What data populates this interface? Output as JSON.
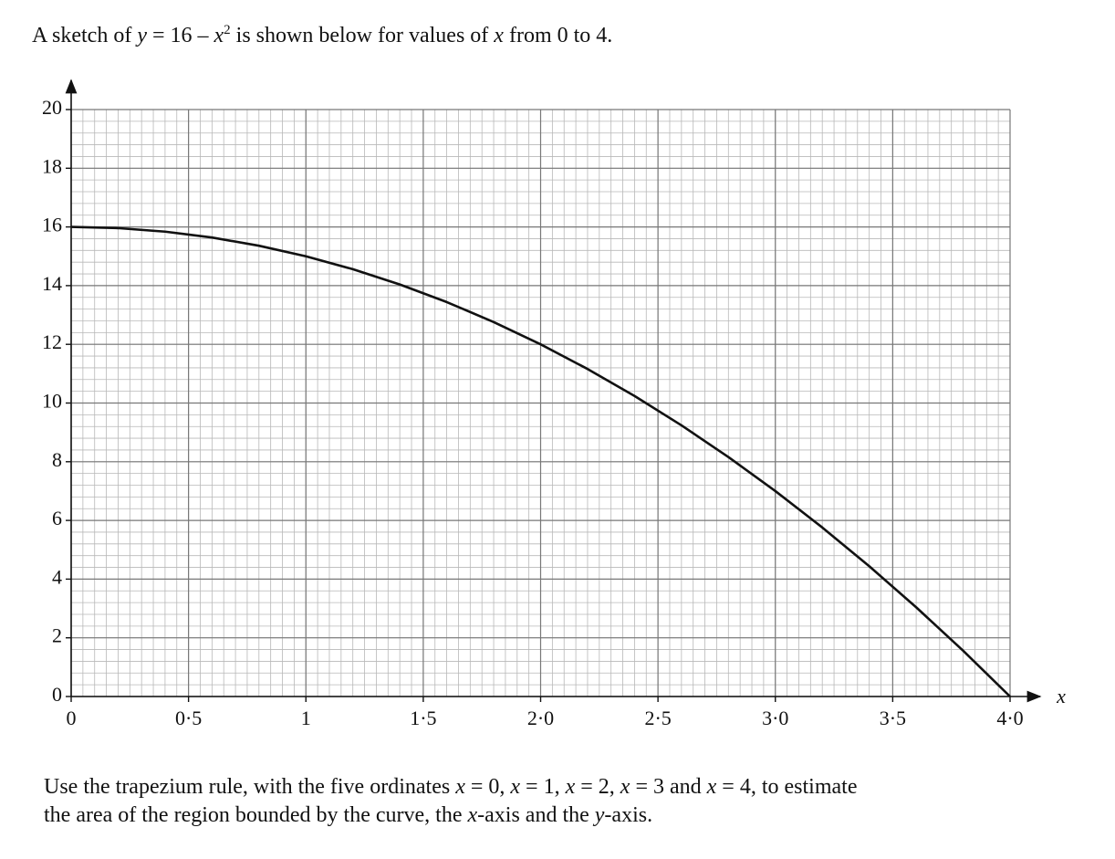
{
  "intro": [
    "A sketch of ",
    "y",
    " = 16 – ",
    "x",
    "2",
    " is shown below for values of ",
    "x",
    " from 0 to 4."
  ],
  "chart_data": {
    "type": "line",
    "x_label": "x",
    "x": [
      0,
      0.2,
      0.4,
      0.6,
      0.8,
      1,
      1.2,
      1.4,
      1.6,
      1.8,
      2,
      2.2,
      2.4,
      2.6,
      2.8,
      3,
      3.2,
      3.4,
      3.6,
      3.8,
      4
    ],
    "series": [
      {
        "color": "#111111",
        "values": [
          16,
          15.96,
          15.84,
          15.64,
          15.36,
          15,
          14.56,
          14.04,
          13.44,
          12.76,
          12,
          11.16,
          10.24,
          9.24,
          8.16,
          7,
          5.76,
          4.44,
          3.04,
          1.56,
          0
        ]
      }
    ],
    "xlim": [
      0,
      4
    ],
    "ylim": [
      0,
      20
    ],
    "xticks": [
      0,
      {
        "value": 0.5,
        "label": "0·5"
      },
      1,
      {
        "value": 1.5,
        "label": "1·5"
      },
      {
        "value": 2,
        "label": "2·0"
      },
      {
        "value": 2.5,
        "label": "2·5"
      },
      {
        "value": 3,
        "label": "3·0"
      },
      {
        "value": 3.5,
        "label": "3·5"
      },
      {
        "value": 4,
        "label": "4·0"
      }
    ],
    "yticks": [
      0,
      2,
      4,
      6,
      8,
      10,
      12,
      14,
      16,
      18,
      20
    ],
    "grid": true,
    "minor_grid": {
      "x": 0.05,
      "y": 0.4
    }
  },
  "question": [
    "Use the trapezium rule, with the five ordinates ",
    "x",
    " = 0, ",
    "x",
    " = 1, ",
    "x",
    " = 2, ",
    "x",
    " = 3 and ",
    "x",
    " = 4, to estimate",
    "the area of the region bounded by the curve, the ",
    "x",
    "-axis and the ",
    "y",
    "-axis."
  ]
}
